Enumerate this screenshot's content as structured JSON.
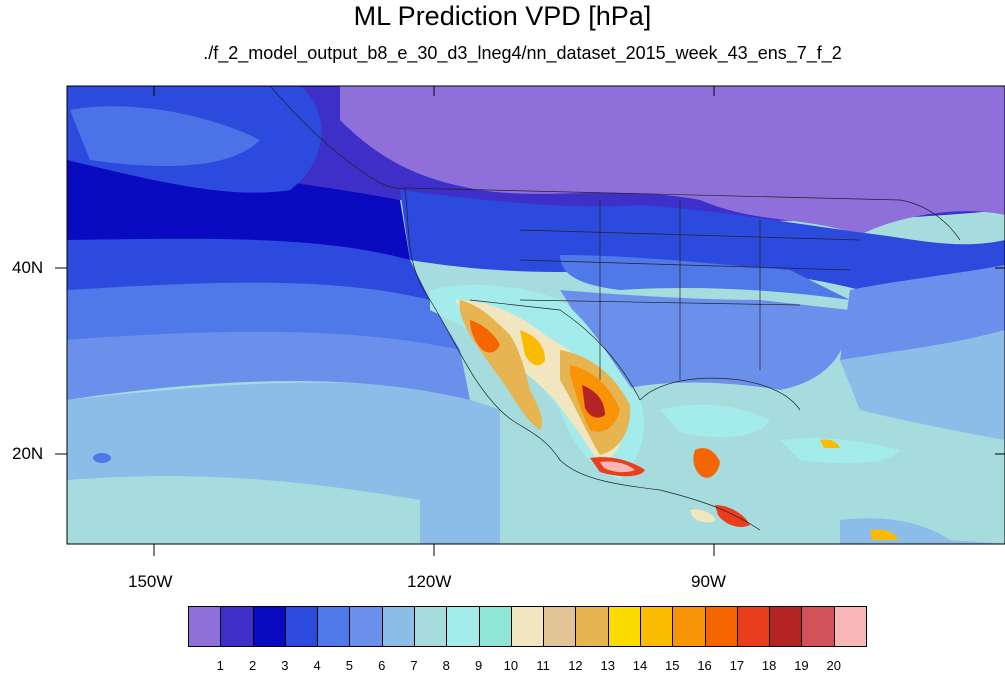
{
  "title": "ML Prediction VPD [hPa]",
  "subtitle": "./f_2_model_output_b8_e_30_d3_lneg4/nn_dataset_2015_week_43_ens_7_f_2",
  "map": {
    "lat_labels": [
      "40N",
      "20N"
    ],
    "lon_labels": [
      "150W",
      "120W",
      "90W"
    ]
  },
  "colorbar": {
    "levels": [
      "1",
      "2",
      "3",
      "4",
      "5",
      "6",
      "7",
      "8",
      "9",
      "10",
      "11",
      "12",
      "13",
      "14",
      "15",
      "16",
      "17",
      "18",
      "19",
      "20"
    ],
    "colors": [
      "#8f6fd9",
      "#3e2fc8",
      "#0a0ac0",
      "#2d4ade",
      "#4f78e8",
      "#6b90ec",
      "#8cbde8",
      "#a6dcde",
      "#a4ecec",
      "#90e6d6",
      "#f2e6c0",
      "#e0c496",
      "#e6b450",
      "#fadb00",
      "#fbbb00",
      "#f99408",
      "#f56600",
      "#e83e1c",
      "#b52424",
      "#d2525a",
      "#f8b6b6"
    ]
  }
}
